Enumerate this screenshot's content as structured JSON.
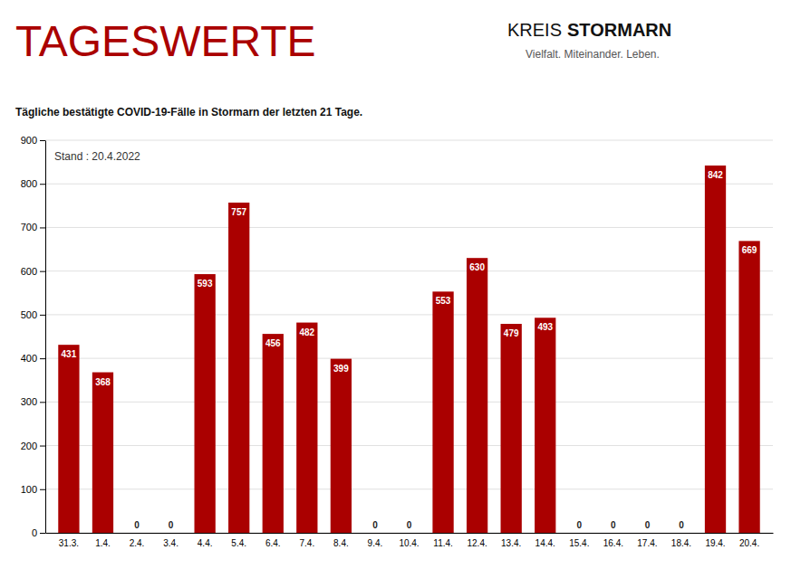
{
  "chart_data": {
    "type": "bar",
    "title": "TAGESWERTE",
    "subtitle": "Tägliche bestätigte COVID-19-Fälle in Stormarn der letzten 21 Tage.",
    "annotations": [
      "Stand : 20.4.2022",
      "KREIS",
      "STORMARN",
      "Vielfalt. Miteinander. Leben."
    ],
    "categories": [
      "31.3.",
      "1.4.",
      "2.4.",
      "3.4.",
      "4.4.",
      "5.4.",
      "6.4.",
      "7.4.",
      "8.4.",
      "9.4.",
      "10.4.",
      "11.4.",
      "12.4.",
      "13.4.",
      "14.4.",
      "15.4.",
      "16.4.",
      "17.4.",
      "18.4.",
      "19.4.",
      "20.4."
    ],
    "values": [
      431,
      368,
      0,
      0,
      593,
      757,
      456,
      482,
      399,
      0,
      0,
      553,
      630,
      479,
      493,
      0,
      0,
      0,
      0,
      842,
      669
    ],
    "color": "#AA0000",
    "ylim": [
      0,
      900
    ],
    "yticks": [
      0,
      100,
      200,
      300,
      400,
      500,
      600,
      700,
      800,
      900
    ],
    "grid": true,
    "data_labels": true
  }
}
